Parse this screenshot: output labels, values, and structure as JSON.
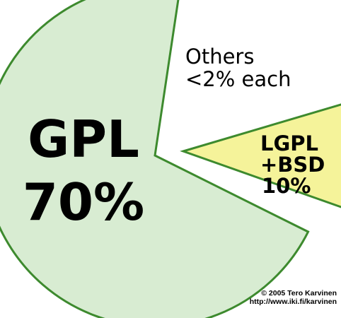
{
  "chart_data": {
    "type": "pie",
    "slices": [
      {
        "label": "GPL",
        "value": 70,
        "value_label": "70%",
        "color": "#d8ecd2",
        "stroke": "#3d8a2e"
      },
      {
        "label": "LGPL\n+BSD",
        "value": 10,
        "value_label": "10%",
        "color": "#f5f39a",
        "stroke": "#3d8a2e"
      }
    ],
    "annotation": [
      "Others",
      "<2% each"
    ],
    "credit": [
      "© 2005 Tero Karvinen",
      "http://www.iki.fi/karvinen"
    ]
  }
}
